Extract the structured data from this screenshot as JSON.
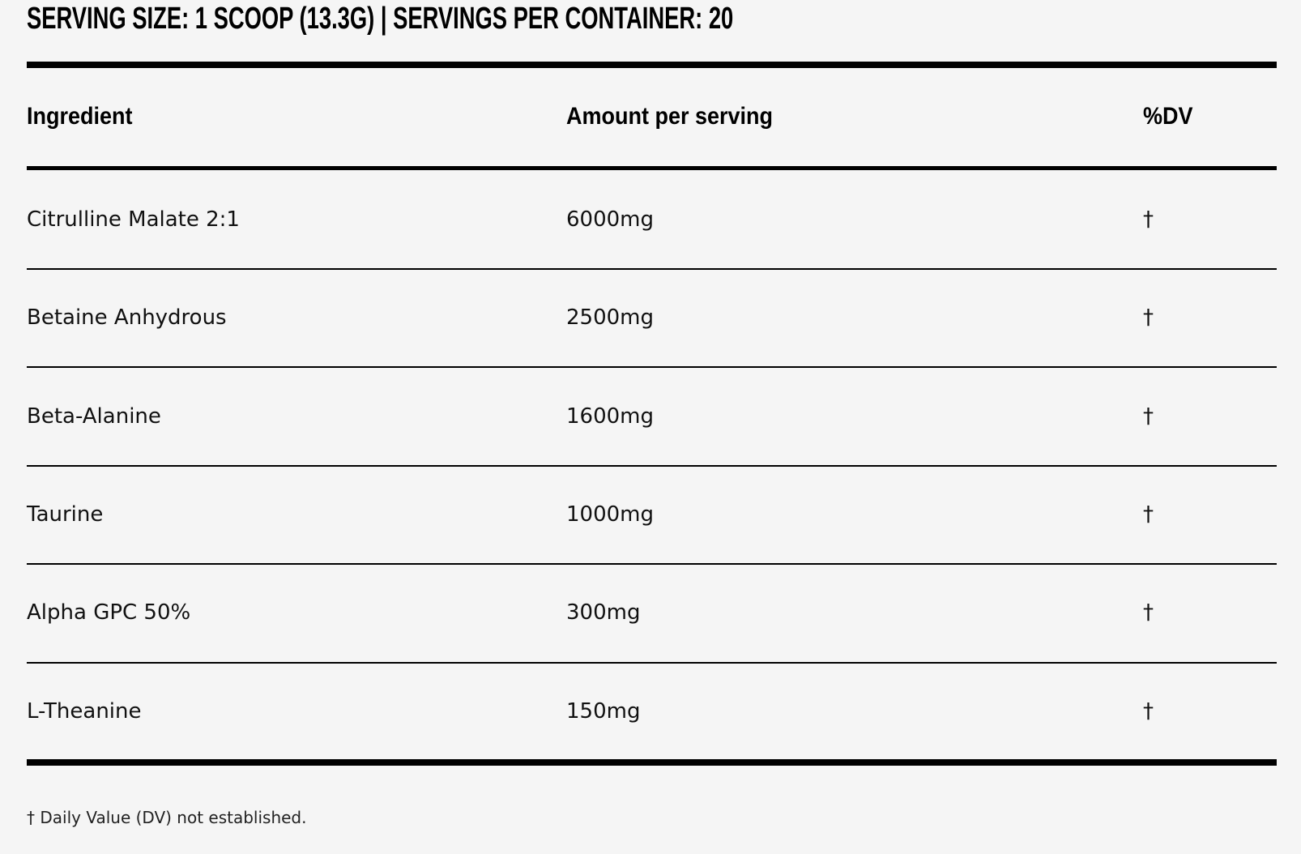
{
  "title": "SERVING SIZE: 1 SCOOP (13.3G) | SERVINGS PER CONTAINER: 20",
  "table": {
    "headers": [
      "Ingredient",
      "Amount per serving",
      "%DV"
    ],
    "rows": [
      [
        "Citrulline Malate 2:1",
        "6000mg",
        "†"
      ],
      [
        "Betaine Anhydrous",
        "2500mg",
        "†"
      ],
      [
        "Beta-Alanine",
        "1600mg",
        "†"
      ],
      [
        "Taurine",
        "1000mg",
        "†"
      ],
      [
        "Alpha GPC 50%",
        "300mg",
        "†"
      ],
      [
        "L-Theanine",
        "150mg",
        "†"
      ]
    ]
  },
  "footnote": "† Daily Value (DV) not established."
}
